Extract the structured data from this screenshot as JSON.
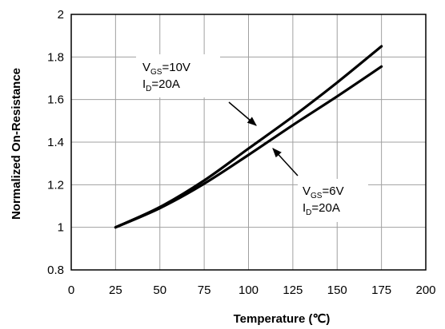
{
  "chart_data": {
    "type": "line",
    "xlabel": "Temperature (℃)",
    "ylabel": "Normalized On-Resistance",
    "xlim": [
      0,
      200
    ],
    "ylim": [
      0.8,
      2
    ],
    "x_ticks": [
      "0",
      "25",
      "50",
      "75",
      "100",
      "125",
      "150",
      "175",
      "200"
    ],
    "y_ticks": [
      "0.8",
      "1",
      "1.2",
      "1.4",
      "1.6",
      "1.8",
      "2"
    ],
    "grid": true,
    "series": [
      {
        "x": [
          25,
          50,
          75,
          100,
          125,
          150,
          175
        ],
        "y": [
          1.0,
          1.095,
          1.22,
          1.37,
          1.52,
          1.68,
          1.85
        ],
        "annotation": {
          "v_main": "V",
          "v_sub": "GS",
          "v_rest": "=10V",
          "i_main": "I",
          "i_sub": "D",
          "i_rest": "=20A"
        }
      },
      {
        "x": [
          25,
          50,
          75,
          100,
          125,
          150,
          175
        ],
        "y": [
          1.0,
          1.09,
          1.205,
          1.34,
          1.48,
          1.615,
          1.755
        ],
        "annotation": {
          "v_main": "V",
          "v_sub": "GS",
          "v_rest": "=6V",
          "i_main": "I",
          "i_sub": "D",
          "i_rest": "=20A"
        }
      }
    ]
  }
}
